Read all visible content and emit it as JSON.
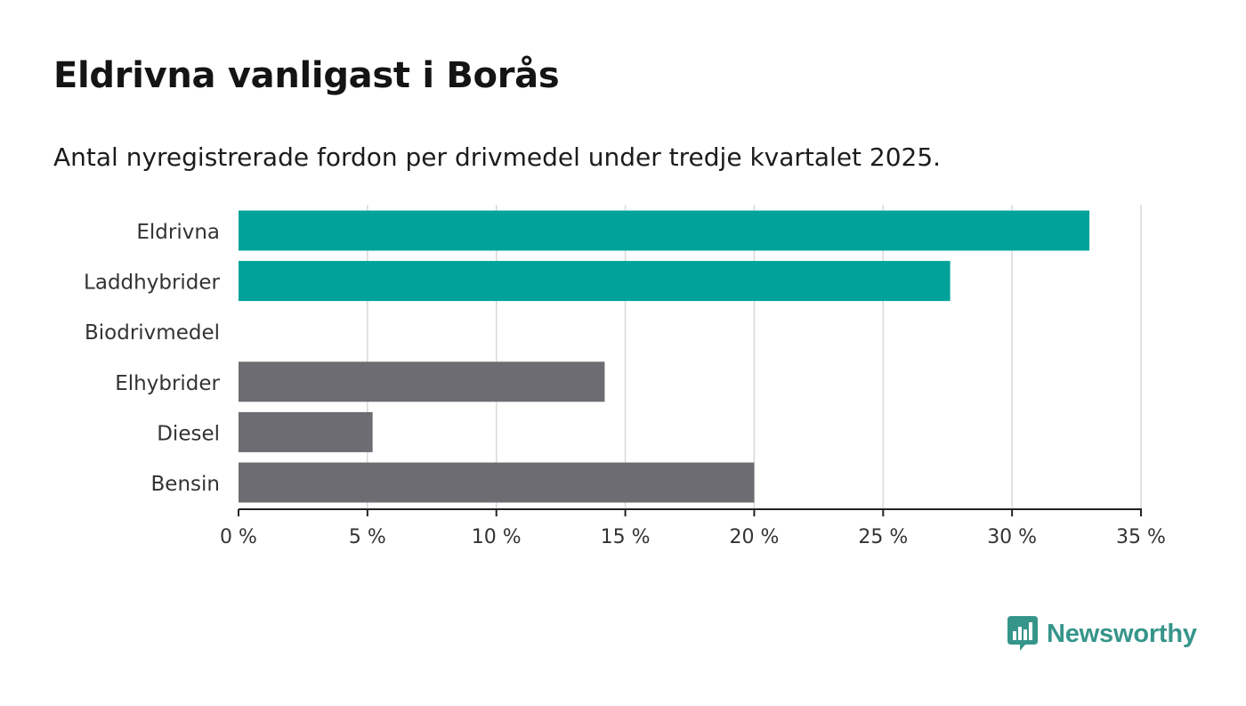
{
  "header": {
    "title": "Eldrivna vanligast i Borås",
    "subtitle": "Antal nyregistrerade fordon per drivmedel under tredje kvartalet 2025."
  },
  "brand": {
    "name": "Newsworthy",
    "logo_icon": "bar-chart-speech-bubble-icon",
    "color": "#36958a"
  },
  "colors": {
    "highlight": "#00a29a",
    "default": "#6d6c72",
    "grid": "#d9d9d9",
    "axis": "#222222",
    "tick_text": "#333333"
  },
  "chart_data": {
    "type": "bar",
    "orientation": "horizontal",
    "title": "Eldrivna vanligast i Borås",
    "subtitle": "Antal nyregistrerade fordon per drivmedel under tredje kvartalet 2025.",
    "xlabel": "",
    "ylabel": "",
    "categories": [
      "Eldrivna",
      "Laddhybrider",
      "Biodrivmedel",
      "Elhybrider",
      "Diesel",
      "Bensin"
    ],
    "values": [
      33.0,
      27.6,
      0,
      14.2,
      5.2,
      20.0
    ],
    "highlighted": [
      true,
      true,
      true,
      false,
      false,
      false
    ],
    "xlim": [
      0,
      35
    ],
    "xticks": [
      0,
      5,
      10,
      15,
      20,
      25,
      30,
      35
    ],
    "tick_labels": [
      "0 %",
      "5 %",
      "10 %",
      "15 %",
      "20 %",
      "25 %",
      "30 %",
      "35 %"
    ],
    "unit": "%",
    "grid": true
  }
}
